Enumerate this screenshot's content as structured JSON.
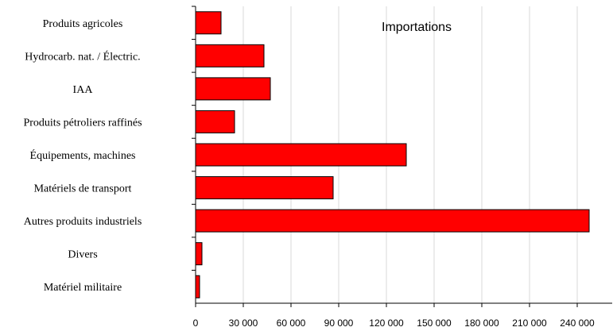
{
  "chart_data": {
    "type": "bar",
    "orientation": "horizontal",
    "title": "Importations",
    "categories": [
      "Produits agricoles",
      "Hydrocarb. nat. / Électric.",
      "IAA",
      "Produits pétroliers raffinés",
      "Équipements, machines",
      "Matériels de transport",
      "Autres produits industriels",
      "Divers",
      "Matériel militaire"
    ],
    "values": [
      16000,
      43000,
      47000,
      24500,
      132500,
      86500,
      247500,
      4000,
      2500
    ],
    "xlim": [
      0,
      262000
    ],
    "xticks": [
      0,
      30000,
      60000,
      90000,
      120000,
      150000,
      180000,
      210000,
      240000
    ],
    "xtick_labels": [
      "0",
      "30 000",
      "60 000",
      "90 000",
      "120 000",
      "150 000",
      "180 000",
      "210 000",
      "240 000"
    ],
    "bar_color": "#ff0000",
    "grid": true
  }
}
